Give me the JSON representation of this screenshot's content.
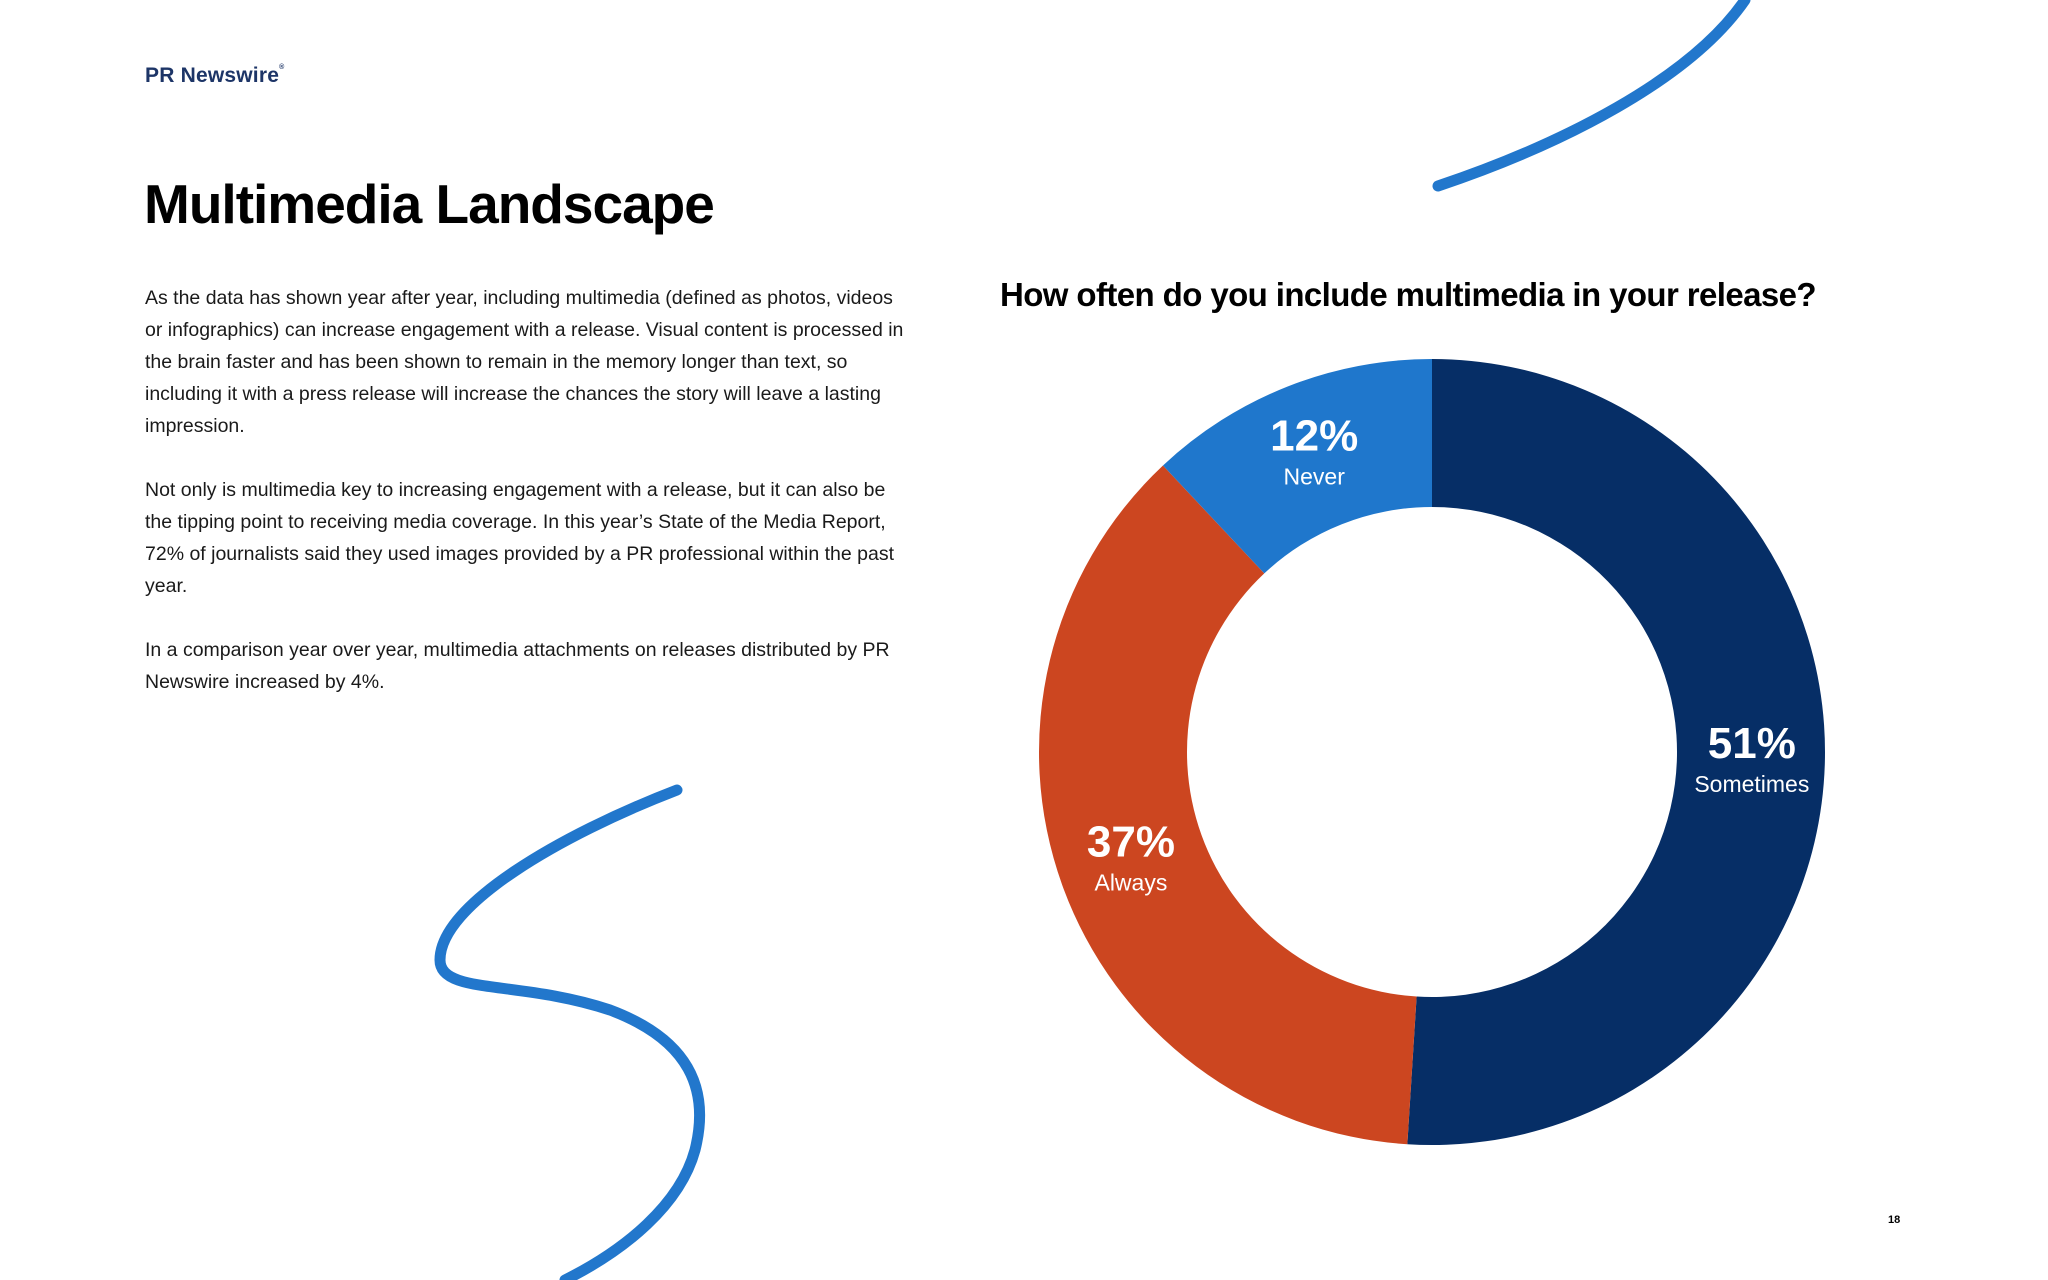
{
  "header": {
    "logo_text": "PR Newswire",
    "logo_mark": "®"
  },
  "page_title": "Multimedia Landscape",
  "body": {
    "paragraphs": [
      "As the data has shown year after year, including multimedia (defined as photos, videos or infographics) can increase engagement with a release. Visual content is processed in the brain faster and has been shown to remain in the memory longer than text, so including it with a press release will increase the chances the story will leave a lasting impression.",
      "Not only is multimedia key to increasing engagement with a release, but it can also be the tipping point to receiving media coverage. In this year’s State of the Media Report, 72% of journalists said they used images provided by a PR professional within the past year.",
      "In a comparison year over year, multimedia attachments on releases distributed by PR Newswire increased by 4%."
    ]
  },
  "chart_data": {
    "type": "pie",
    "subtype": "donut",
    "title": "How often do you include multimedia in your release?",
    "categories": [
      "Sometimes",
      "Always",
      "Never"
    ],
    "values": [
      51,
      37,
      12
    ],
    "value_labels": [
      "51%",
      "37%",
      "12%"
    ],
    "colors": [
      "#062e66",
      "#cc4620",
      "#1f77cc"
    ],
    "start_angle_deg": 0,
    "direction": "clockwise"
  },
  "colors": {
    "brand_navy": "#1d3567",
    "accent_blue": "#2277cc"
  },
  "footer": {
    "page_number": "18"
  }
}
